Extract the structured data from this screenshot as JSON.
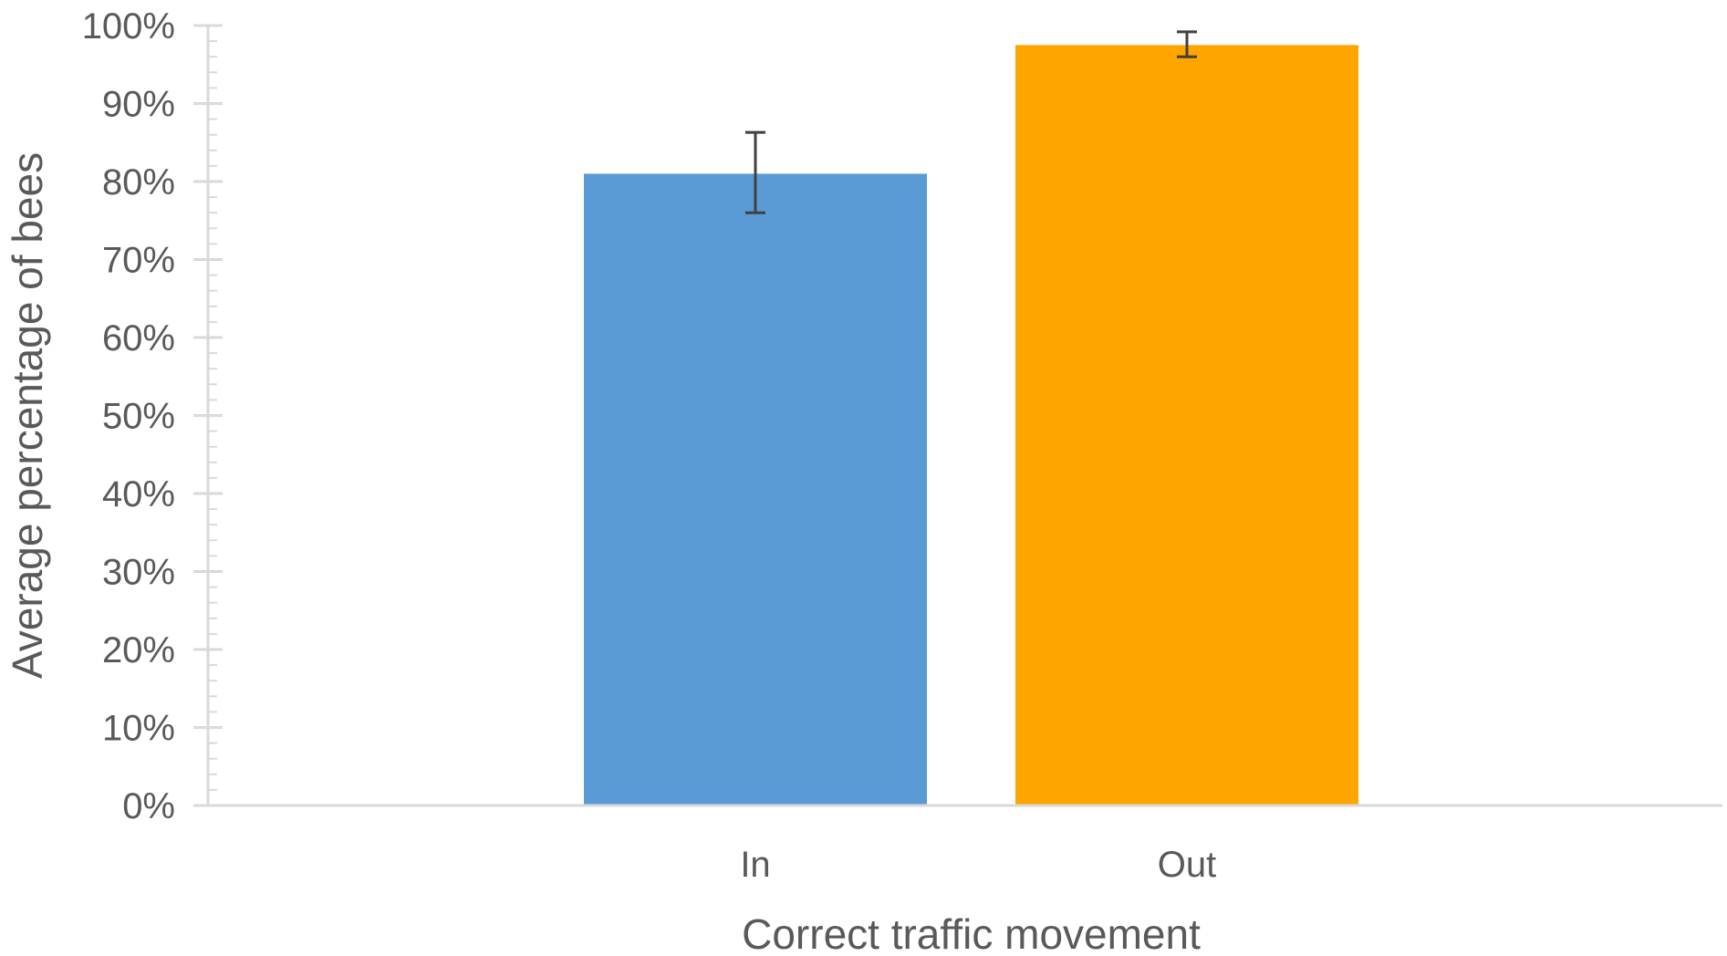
{
  "chart_data": {
    "type": "bar",
    "categories": [
      "In",
      "Out"
    ],
    "values": [
      81,
      97.5
    ],
    "error_low": [
      76,
      96
    ],
    "error_high": [
      86.3,
      99.2
    ],
    "colors": [
      "#5B9BD5",
      "#FFA500"
    ],
    "title": "",
    "xlabel": "Correct traffic movement",
    "ylabel": "Average percentage of bees",
    "ylim": [
      0,
      100
    ],
    "y_ticks": [
      0,
      10,
      20,
      30,
      40,
      50,
      60,
      70,
      80,
      90,
      100
    ],
    "y_tick_format": "percent",
    "grid": false,
    "legend": "none"
  },
  "axis_color": "#D9D9D9",
  "errorbar_color": "#404040"
}
